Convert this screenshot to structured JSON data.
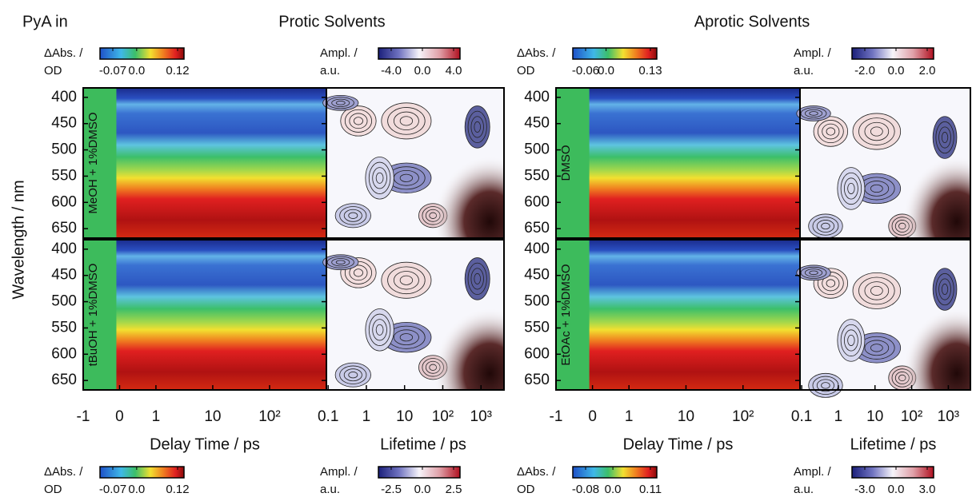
{
  "figure": {
    "label": "PyA in",
    "ylabel": "Wavelength / nm",
    "ylim": [
      382,
      668
    ],
    "yticks": [
      400,
      450,
      500,
      550,
      600,
      650
    ],
    "delay_axis": {
      "label": "Delay Time / ps",
      "scale": "linear-log",
      "linthresh": 1,
      "xlim": [
        -1,
        1000
      ],
      "xticks": [
        -1,
        0,
        1,
        10,
        {
          "value": 100,
          "label": "10²"
        }
      ]
    },
    "lifetime_axis": {
      "label": "Lifetime / ps",
      "scale": "log",
      "xlim": [
        0.09,
        4000
      ],
      "xticks": [
        0.1,
        1,
        10,
        {
          "value": 100,
          "label": "10²"
        },
        {
          "value": 1000,
          "label": "10³"
        }
      ]
    },
    "groups": [
      {
        "title": "Protic Solvents",
        "panels": [
          {
            "solvent": "MeOH + 1%DMSO",
            "abs_colorbar": {
              "title": "ΔAbs. /",
              "unit": "OD",
              "ticks": [
                -0.07,
                {
                  "value": 0,
                  "label": "0.0"
                },
                0.12
              ]
            },
            "ampl_colorbar": {
              "title": "Ampl. /",
              "unit": "a.u.",
              "ticks": [
                {
                  "value": -4,
                  "label": "-4.0"
                },
                {
                  "value": 0,
                  "label": "0.0"
                },
                {
                  "value": 4,
                  "label": "4.0"
                }
              ]
            }
          },
          {
            "solvent": "tBuOH + 1%DMSO",
            "abs_colorbar": {
              "title": "ΔAbs. /",
              "unit": "OD",
              "ticks": [
                -0.07,
                {
                  "value": 0,
                  "label": "0.0"
                },
                0.12
              ]
            },
            "ampl_colorbar": {
              "title": "Ampl. /",
              "unit": "a.u.",
              "ticks": [
                -2.5,
                {
                  "value": 0,
                  "label": "0.0"
                },
                2.5
              ]
            }
          }
        ]
      },
      {
        "title": "Aprotic Solvents",
        "panels": [
          {
            "solvent": "DMSO",
            "abs_colorbar": {
              "title": "ΔAbs. /",
              "unit": "OD",
              "ticks": [
                -0.06,
                {
                  "value": 0,
                  "label": "0.0"
                },
                0.13
              ]
            },
            "ampl_colorbar": {
              "title": "Ampl. /",
              "unit": "a.u.",
              "ticks": [
                {
                  "value": -2,
                  "label": "-2.0"
                },
                {
                  "value": 0,
                  "label": "0.0"
                },
                {
                  "value": 2,
                  "label": "2.0"
                }
              ]
            }
          },
          {
            "solvent": "EtOAc + 1%DMSO",
            "abs_colorbar": {
              "title": "ΔAbs. /",
              "unit": "OD",
              "ticks": [
                -0.08,
                {
                  "value": 0,
                  "label": "0.0"
                },
                0.11
              ]
            },
            "ampl_colorbar": {
              "title": "Ampl. /",
              "unit": "a.u.",
              "ticks": [
                {
                  "value": -3,
                  "label": "-3.0"
                },
                {
                  "value": 0,
                  "label": "0.0"
                },
                {
                  "value": 3,
                  "label": "3.0"
                }
              ]
            }
          }
        ]
      }
    ]
  }
}
